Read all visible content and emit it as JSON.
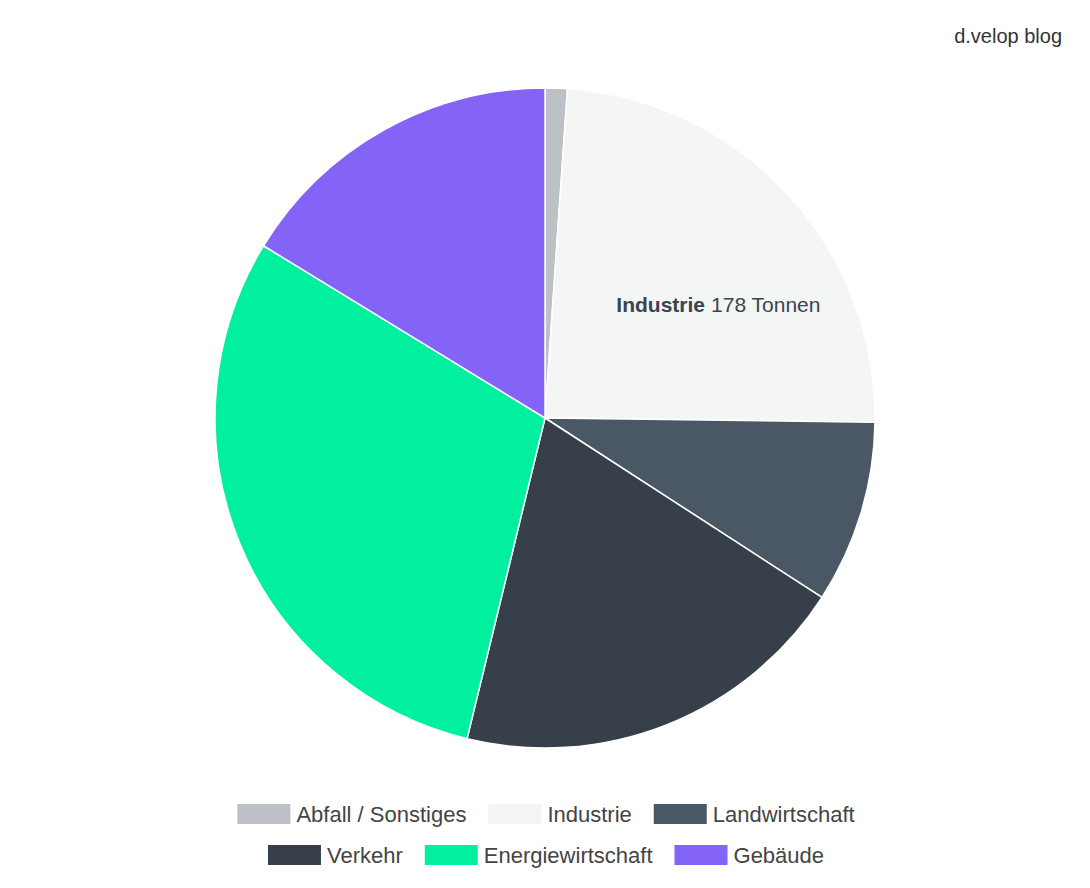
{
  "chart_data": {
    "type": "pie",
    "annotations": [
      "d.velop blog"
    ],
    "categories": [
      "Abfall / Sonstiges",
      "Industrie",
      "Landwirtschaft",
      "Verkehr",
      "Energiewirtschaft",
      "Gebäude"
    ],
    "values": [
      8,
      178,
      66,
      145,
      221,
      120
    ],
    "colors": [
      "#bdc0c4",
      "#f4f5f5",
      "#4a5866",
      "#363f4a",
      "#00f0a0",
      "#8463f7"
    ],
    "data_labels": true,
    "value_labels": [
      null,
      "Industrie 178 Tonnen",
      null,
      null,
      null,
      null
    ],
    "legend": "bottom"
  }
}
